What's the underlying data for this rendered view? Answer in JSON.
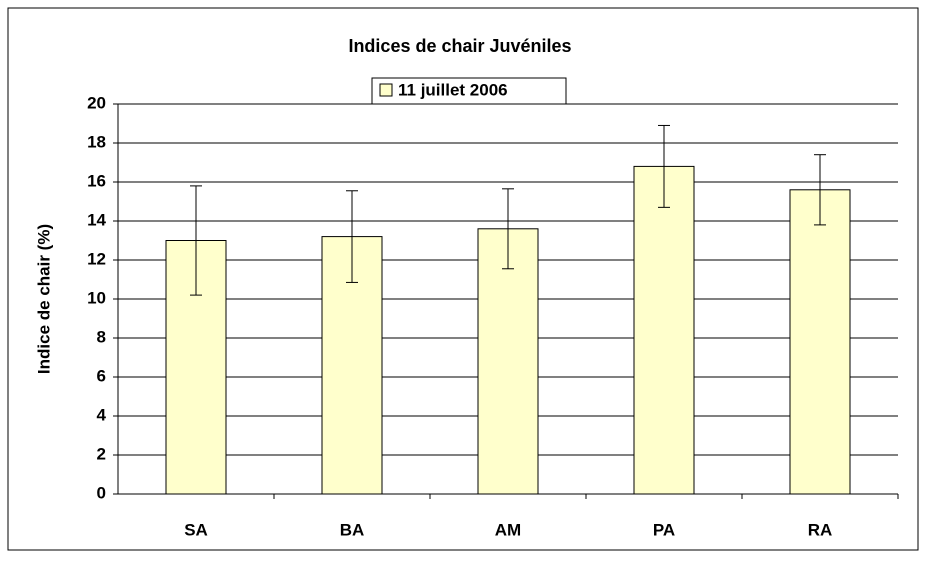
{
  "chart_data": {
    "type": "bar",
    "title": "Indices de chair Juvéniles",
    "series": [
      {
        "name": "11 juillet 2006",
        "color": "#ffffcc",
        "values": [
          13.0,
          13.2,
          13.6,
          16.8,
          15.6
        ],
        "errors": [
          2.8,
          2.35,
          2.05,
          2.1,
          1.8
        ]
      }
    ],
    "categories": [
      "SA",
      "BA",
      "AM",
      "PA",
      "RA"
    ],
    "y_label": "Indice de chair (%)",
    "ylim": [
      0,
      20
    ],
    "yticks": [
      0,
      2,
      4,
      6,
      8,
      10,
      12,
      14,
      16,
      18,
      20
    ],
    "grid": true
  }
}
